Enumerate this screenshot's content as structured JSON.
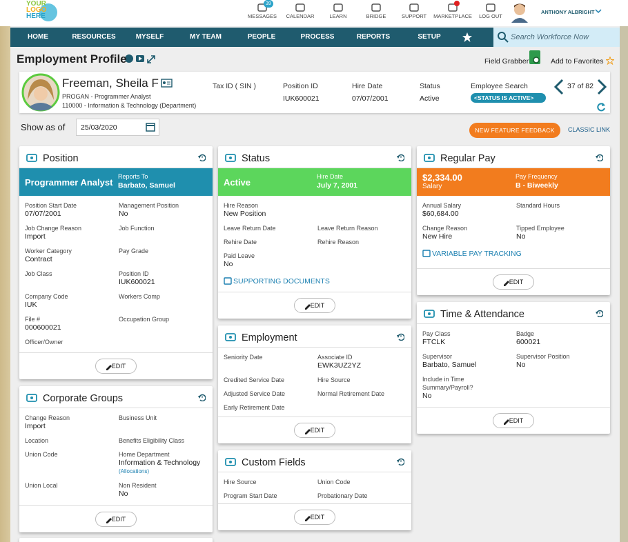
{
  "header": {
    "logo": [
      "YOUR",
      "LOGO",
      "HERE"
    ],
    "icons": [
      {
        "label": "MESSAGES",
        "badge": 39
      },
      {
        "label": "CALENDAR"
      },
      {
        "label": "LEARN"
      },
      {
        "label": "BRIDGE"
      },
      {
        "label": "SUPPORT"
      },
      {
        "label": "MARKETPLACE"
      },
      {
        "label": "LOG OUT"
      }
    ],
    "user": "ANTHONY ALBRIGHT"
  },
  "nav": {
    "items": [
      "HOME",
      "RESOURCES",
      "MYSELF",
      "MY TEAM",
      "PEOPLE",
      "PROCESS",
      "REPORTS",
      "SETUP"
    ],
    "search_placeholder": "Search Workforce Now"
  },
  "page": {
    "title": "Employment Profile",
    "actions": [
      "Field Grabber",
      "Add to Favorites"
    ]
  },
  "employee": {
    "name": "Freeman, Sheila F",
    "position": "PROGAN - Programmer Analyst",
    "department": "110000 - Information & Technology (Department)",
    "fields": [
      {
        "label": "Tax ID ( SIN )"
      },
      {
        "label": "Position ID",
        "value": "IUK600021"
      },
      {
        "label": "Hire Date",
        "value": "07/07/2001"
      },
      {
        "label": "Status",
        "value": "Active"
      },
      {
        "label": "Employee Search",
        "chip": "<STATUS IS ACTIVE>"
      }
    ],
    "pager": "37 of 82"
  },
  "as_of": {
    "label": "Show as of",
    "date": "25/03/2020",
    "feedback": "NEW FEATURE FEEDBACK",
    "classic": "CLASSIC LINK"
  },
  "columns": [
    [
      {
        "title": "Position",
        "banner": {
          "color": "#1f8fae",
          "main": "Programmer Analyst",
          "side_label": "Reports To",
          "side_value": "Barbato, Samuel"
        },
        "fields": [
          {
            "label": "Position Start Date",
            "value": "07/07/2001"
          },
          {
            "label": "Management Position",
            "value": "No"
          },
          {
            "label": "Job Change Reason",
            "value": "Import"
          },
          {
            "label": "Job Function"
          },
          {
            "label": "Worker Category",
            "value": "Contract"
          },
          {
            "label": "Pay Grade"
          },
          {
            "label": "Job Class"
          },
          {
            "label": "Position ID",
            "value": "IUK600021"
          },
          {
            "label": "Company Code",
            "value": "IUK"
          },
          {
            "label": "Workers Comp"
          },
          {
            "label": "File #",
            "value": "000600021"
          },
          {
            "label": "Occupation Group"
          },
          {
            "label": "Officer/Owner"
          }
        ],
        "edit": "EDIT"
      },
      {
        "title": "Corporate Groups",
        "fields": [
          {
            "label": "Change Reason",
            "value": "Import"
          },
          {
            "label": "Business Unit"
          },
          {
            "label": "Location"
          },
          {
            "label": "Benefits Eligibility Class"
          },
          {
            "label": "Union Code"
          },
          {
            "label": "Home Department",
            "value": "Information & Technology",
            "note": "(Allocations)"
          },
          {
            "label": "Union Local"
          },
          {
            "label": "Non Resident",
            "value": "No"
          }
        ],
        "edit": "EDIT"
      }
    ],
    [
      {
        "title": "Status",
        "banner": {
          "color": "#5cd65c",
          "main": "Active",
          "side_label": "Hire Date",
          "side_value": "July 7, 2001"
        },
        "fields": [
          {
            "label": "Hire Reason",
            "value": "New Position"
          },
          null,
          {
            "label": "Leave Return Date"
          },
          {
            "label": "Leave Return Reason"
          },
          {
            "label": "Rehire Date"
          },
          {
            "label": "Rehire Reason"
          },
          {
            "label": "Paid Leave",
            "value": "No"
          }
        ],
        "link": "SUPPORTING DOCUMENTS",
        "edit": "EDIT"
      },
      {
        "title": "Employment",
        "fields": [
          {
            "label": "Seniority Date"
          },
          {
            "label": "Associate ID",
            "value": "EWK3UZ2YZ"
          },
          {
            "label": "Credited Service Date"
          },
          {
            "label": "Hire Source"
          },
          {
            "label": "Adjusted Service Date"
          },
          {
            "label": "Normal Retirement Date"
          },
          {
            "label": "Early Retirement Date"
          }
        ],
        "edit": "EDIT"
      },
      {
        "title": "Custom Fields",
        "fields": [
          {
            "label": "Hire Source"
          },
          {
            "label": "Union Code"
          },
          {
            "label": "Program Start Date"
          },
          {
            "label": "Probationary Date"
          }
        ],
        "edit": "EDIT"
      }
    ],
    [
      {
        "title": "Regular Pay",
        "banner": {
          "color": "#f27c1e",
          "main": "$2,334.00",
          "main_sub": "Salary",
          "side_label": "Pay Frequency",
          "side_value": "B - Biweekly"
        },
        "fields": [
          {
            "label": "Annual Salary",
            "value": "$60,684.00"
          },
          {
            "label": "Standard Hours"
          },
          {
            "label": "Change Reason",
            "value": "New Hire"
          },
          {
            "label": "Tipped Employee",
            "value": "No"
          }
        ],
        "link": "VARIABLE PAY TRACKING",
        "edit": "EDIT"
      },
      {
        "title": "Time & Attendance",
        "fields": [
          {
            "label": "Pay Class",
            "value": "FTCLK"
          },
          {
            "label": "Badge",
            "value": "600021"
          },
          {
            "label": "Supervisor",
            "value": "Barbato, Samuel"
          },
          {
            "label": "Supervisor Position",
            "value": "No"
          },
          {
            "label": "Include in Time Summary/Payroll?",
            "value": "No"
          }
        ],
        "edit": "EDIT"
      }
    ]
  ]
}
